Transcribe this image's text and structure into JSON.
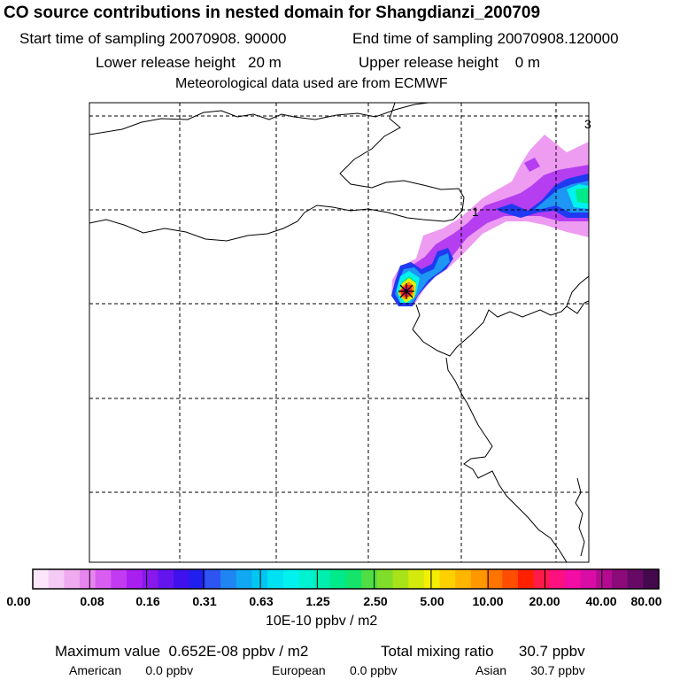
{
  "title": "CO  source contributions in nested domain for Shangdianzi_200709",
  "header": {
    "start_label": "Start time of sampling",
    "start_value": "20070908. 90000",
    "end_label": "End time of sampling",
    "end_value": "20070908.120000",
    "lower_label": "Lower release height",
    "lower_value": "20 m",
    "upper_label": "Upper release height",
    "upper_value": "0 m",
    "met_text": "Meteorological data used are from ECMWF"
  },
  "map": {
    "contour_labels": [
      "1",
      "3"
    ],
    "receptor_marker": "star-icon"
  },
  "colorbar": {
    "colors": [
      "#fbe6fb",
      "#f5cbf5",
      "#efaaf0",
      "#e785ef",
      "#d85df1",
      "#c23af1",
      "#a81ff0",
      "#8818ee",
      "#6415ee",
      "#3f12ed",
      "#1f1fef",
      "#2e55f2",
      "#1e85f3",
      "#10a8f3",
      "#00c6f1",
      "#00e2f1",
      "#00f1ee",
      "#00f2d0",
      "#00eeae",
      "#00e98a",
      "#14e46a",
      "#4fde44",
      "#80de2a",
      "#a8e31a",
      "#d3ea0c",
      "#f4ee00",
      "#ffd000",
      "#ffb600",
      "#ff9700",
      "#ff7400",
      "#ff4e00",
      "#ff2000",
      "#ff1a4a",
      "#ff1080",
      "#f40da4",
      "#d90da6",
      "#b40a92",
      "#8c0a7a",
      "#660a66",
      "#44084c"
    ],
    "tick_labels": [
      "0.00",
      "0.08",
      "0.16",
      "0.31",
      "0.63",
      "1.25",
      "2.50",
      "5.00",
      "10.00",
      "20.00",
      "40.00",
      "80.00"
    ],
    "unit_label": "10E-10 ppbv / m2"
  },
  "stats": {
    "max_label": "Maximum value",
    "max_value": "0.652E-08 ppbv / m2",
    "total_label": "Total mixing ratio",
    "total_value": "30.7 ppbv",
    "regions": [
      {
        "name": "American",
        "value": "0.0 ppbv"
      },
      {
        "name": "European",
        "value": "0.0 ppbv"
      },
      {
        "name": "Asian",
        "value": "30.7 ppbv"
      }
    ]
  }
}
